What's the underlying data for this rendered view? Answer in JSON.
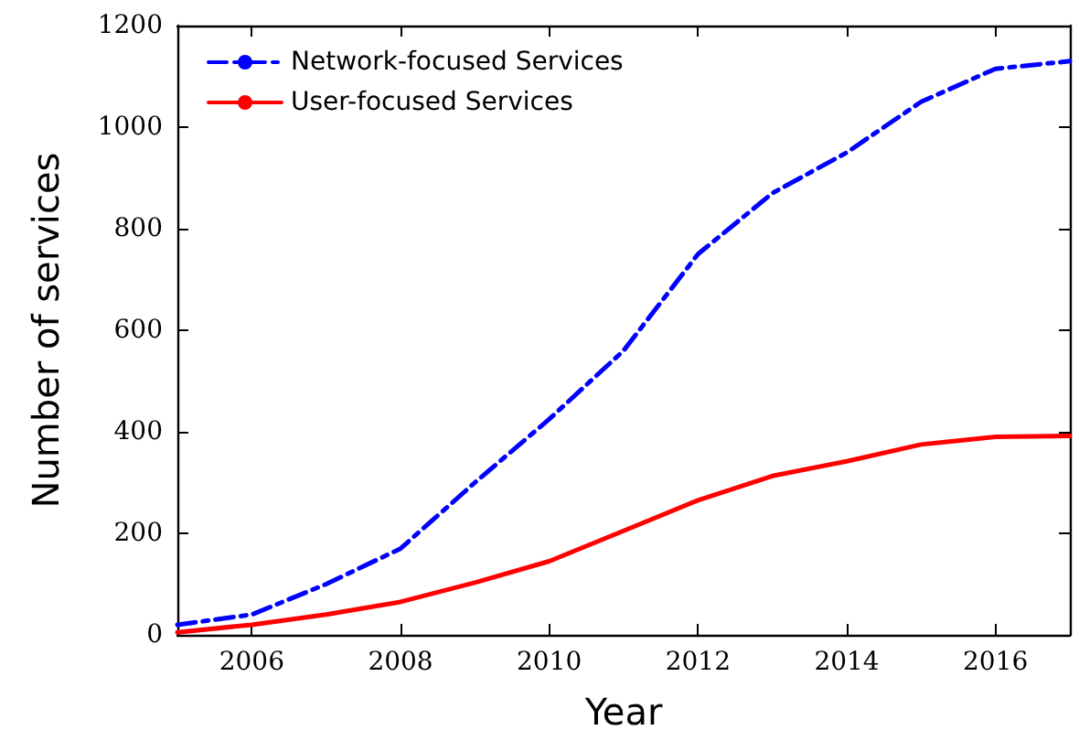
{
  "chart_data": {
    "type": "line",
    "xlabel": "Year",
    "ylabel": "Number of services",
    "x": [
      2005,
      2006,
      2007,
      2008,
      2009,
      2010,
      2011,
      2012,
      2013,
      2014,
      2015,
      2016,
      2017
    ],
    "series": [
      {
        "name": "Network-focused Services",
        "color": "#0000ff",
        "line_style": "dashed",
        "values": [
          20,
          40,
          100,
          170,
          300,
          425,
          560,
          750,
          870,
          950,
          1050,
          1115,
          1130
        ]
      },
      {
        "name": "User-focused Services",
        "color": "#ff0000",
        "line_style": "solid",
        "values": [
          5,
          20,
          40,
          65,
          103,
          145,
          205,
          265,
          313,
          342,
          375,
          390,
          392
        ]
      }
    ],
    "xlim": [
      2005,
      2017
    ],
    "xticks": [
      2006,
      2008,
      2010,
      2012,
      2014,
      2016
    ],
    "ylim": [
      0,
      1200
    ],
    "yticks": [
      0,
      200,
      400,
      600,
      800,
      1000,
      1200
    ],
    "grid": false,
    "legend": "top left",
    "marker": "none"
  }
}
